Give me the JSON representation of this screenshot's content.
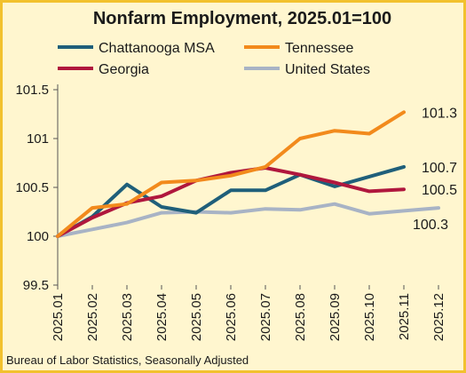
{
  "chart_data": {
    "type": "line",
    "title": "Nonfarm Employment, 2025.01=100",
    "source": "Bureau of Labor Statistics, Seasonally Adjusted",
    "categories": [
      "2025.01",
      "2025.02",
      "2025.03",
      "2025.04",
      "2025.05",
      "2025.06",
      "2025.07",
      "2025.08",
      "2025.09",
      "2025.10",
      "2025.11",
      "2025.12"
    ],
    "ylim": [
      99.5,
      101.5
    ],
    "yticks": [
      99.5,
      100,
      100.5,
      101,
      101.5
    ],
    "ytick_labels": [
      "99.5",
      "100",
      "100.5",
      "101",
      "101.5"
    ],
    "legend_position": "top",
    "grid": false,
    "series": [
      {
        "name": "Chattanooga MSA",
        "color": "#1f5f7a",
        "values": [
          100.0,
          100.2,
          100.53,
          100.3,
          100.24,
          100.47,
          100.47,
          100.63,
          100.51,
          100.61,
          100.71,
          null
        ],
        "end_label": "100.7"
      },
      {
        "name": "Tennessee",
        "color": "#f28a1c",
        "values": [
          100.0,
          100.29,
          100.33,
          100.55,
          100.57,
          100.62,
          100.71,
          101.0,
          101.08,
          101.05,
          101.27,
          null
        ],
        "end_label": "101.3"
      },
      {
        "name": "Georgia",
        "color": "#b0173d",
        "values": [
          100.0,
          100.19,
          100.34,
          100.41,
          100.57,
          100.65,
          100.7,
          100.63,
          100.55,
          100.46,
          100.48,
          null
        ],
        "end_label": "100.5"
      },
      {
        "name": "United States",
        "color": "#a8b3c5",
        "values": [
          100.0,
          100.07,
          100.14,
          100.24,
          100.25,
          100.24,
          100.28,
          100.27,
          100.33,
          100.23,
          100.26,
          100.29
        ],
        "end_label": "100.3"
      }
    ]
  }
}
